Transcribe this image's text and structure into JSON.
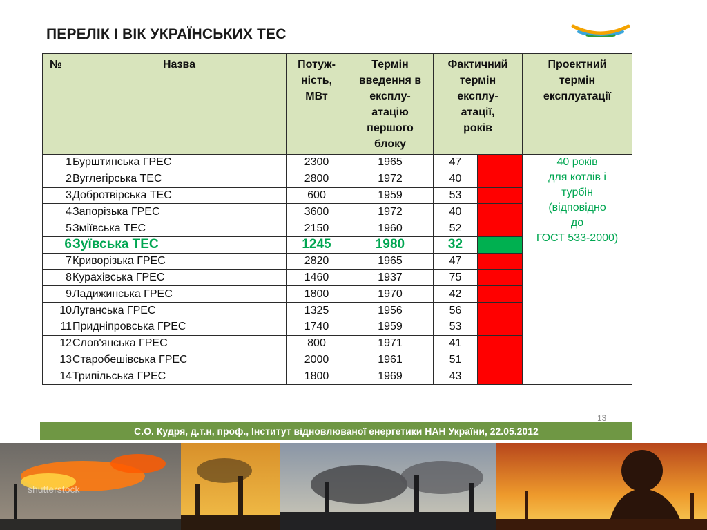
{
  "title": "ПЕРЕЛІК І ВІК УКРАЇНСЬКИХ ТЕС",
  "table": {
    "headers": {
      "num": "№",
      "name": "Назва",
      "power": [
        "Потуж-",
        "ність,",
        "МВт"
      ],
      "start": [
        "Термін",
        "введення в",
        "експлу-",
        "атацію",
        "першого",
        "блоку"
      ],
      "actual": [
        "Фактичний",
        "термін",
        "експлу-",
        "атації,",
        "років"
      ],
      "design": [
        "Проектний",
        "термін",
        "експлуатації"
      ]
    },
    "design_note": [
      "40 років",
      "для котлів і",
      "турбін",
      "(відповідно",
      "до",
      "ГОСТ 533-2000)"
    ],
    "rows": [
      {
        "num": "1",
        "name": "Бурштинська ГРЕС",
        "power": "2300",
        "year": "1965",
        "age": "47",
        "status": "red"
      },
      {
        "num": "2",
        "name": "Вуглегірська ТЕС",
        "power": "2800",
        "year": "1972",
        "age": "40",
        "status": "red"
      },
      {
        "num": "3",
        "name": "Добротвірська ТЕС",
        "power": "600",
        "year": "1959",
        "age": "53",
        "status": "red"
      },
      {
        "num": "4",
        "name": "Запорізька ГРЕС",
        "power": "3600",
        "year": "1972",
        "age": "40",
        "status": "red"
      },
      {
        "num": "5",
        "name": "Зміївська ТЕС",
        "power": "2150",
        "year": "1960",
        "age": "52",
        "status": "red"
      },
      {
        "num": "6",
        "name": "Зуївська ТЕС",
        "power": "1245",
        "year": "1980",
        "age": "32",
        "status": "green"
      },
      {
        "num": "7",
        "name": "Криворізька ГРЕС",
        "power": "2820",
        "year": "1965",
        "age": "47",
        "status": "red"
      },
      {
        "num": "8",
        "name": "Курахівська ГРЕС",
        "power": "1460",
        "year": "1937",
        "age": "75",
        "status": "red"
      },
      {
        "num": "9",
        "name": "Ладижинська ГРЕС",
        "power": "1800",
        "year": "1970",
        "age": "42",
        "status": "red"
      },
      {
        "num": "10",
        "name": "Луганська ГРЕС",
        "power": "1325",
        "year": "1956",
        "age": "56",
        "status": "red"
      },
      {
        "num": "11",
        "name": "Придніпровська ГРЕС",
        "power": "1740",
        "year": "1959",
        "age": "53",
        "status": "red"
      },
      {
        "num": "12",
        "name": "Слов'янська ГРЕС",
        "power": "800",
        "year": "1971",
        "age": "41",
        "status": "red"
      },
      {
        "num": "13",
        "name": "Старобешівська ГРЕС",
        "power": "2000",
        "year": "1961",
        "age": "51",
        "status": "red"
      },
      {
        "num": "14",
        "name": "Трипільська ГРЕС",
        "power": "1800",
        "year": "1969",
        "age": "43",
        "status": "red"
      }
    ]
  },
  "page_number": "13",
  "footer": "С.О. Кудря, д.т.н, проф., Інститут відновлюваної енергетики НАН України, 22.05.2012",
  "photo_watermark": "shutterstock",
  "colors": {
    "header_bg": "#d8e4bc",
    "status_red": "#ff0000",
    "status_green": "#00b050",
    "highlight_text": "#00a651",
    "footer_bg": "#6f9744"
  },
  "icons": [
    "logo-icon",
    "gas-flare-photo",
    "smokestack-photo",
    "industrial-skyline-photo",
    "worker-silhouette-photo"
  ]
}
